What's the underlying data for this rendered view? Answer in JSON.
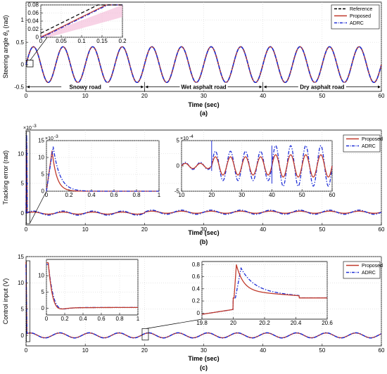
{
  "chart_data": [
    {
      "id": "a",
      "type": "line",
      "caption": "(a)",
      "xlabel": "Time (sec)",
      "ylabel_main": "Steering angle ",
      "ylabel_theta": "θ",
      "ylabel_sub": "s",
      "ylabel_unit": " (rad)",
      "xlim": [
        0,
        60
      ],
      "ylim": [
        -0.6,
        1.4
      ],
      "xticks": [
        "0",
        "10",
        "20",
        "30",
        "40",
        "50",
        "60"
      ],
      "yticks": [
        "-0.5",
        "0",
        "0.5",
        "1"
      ],
      "legend": {
        "position": "top-right",
        "entries": [
          "Reference",
          "Proposed",
          "ADRC"
        ]
      },
      "series": [
        {
          "name": "Reference",
          "color": "#000000",
          "dash": "dashed",
          "signal": "sine",
          "amplitude": 0.4,
          "frequency_hz": 0.2
        },
        {
          "name": "Proposed",
          "color": "#c0392b",
          "dash": "solid",
          "signal": "sine",
          "amplitude": 0.4,
          "frequency_hz": 0.2
        },
        {
          "name": "ADRC",
          "color": "#1f2fd6",
          "dash": "dashdot",
          "signal": "sine",
          "amplitude": 0.4,
          "frequency_hz": 0.2
        }
      ],
      "annotations": [
        {
          "text": "Snowy road",
          "from": 0,
          "to": 20
        },
        {
          "text": "Wet asphalt road",
          "from": 20,
          "to": 40
        },
        {
          "text": "Dry asphalt road",
          "from": 40,
          "to": 60
        }
      ],
      "inset": {
        "xlim": [
          0,
          0.2
        ],
        "ylim": [
          0,
          0.08
        ],
        "xticks": [
          "0",
          "0.05",
          "0.1",
          "0.15",
          "0.2"
        ],
        "yticks": [
          "0",
          "0.02",
          "0.04",
          "0.06",
          "0.08"
        ]
      }
    },
    {
      "id": "b",
      "type": "line",
      "caption": "(b)",
      "xlabel": "Time (sec)",
      "ylabel": "Tracking error (rad)",
      "scale_label": "10",
      "scale_exp": "-3",
      "xlim": [
        0,
        60
      ],
      "ylim": [
        -2,
        14
      ],
      "xticks": [
        "0",
        "10",
        "20",
        "30",
        "40",
        "50",
        "60"
      ],
      "yticks": [
        "0",
        "5",
        "10"
      ],
      "legend": {
        "position": "top-right",
        "entries": [
          "Proposed",
          "ADRC"
        ]
      },
      "series": [
        {
          "name": "Proposed",
          "color": "#c0392b",
          "dash": "solid",
          "peak": 12.0
        },
        {
          "name": "ADRC",
          "color": "#1f2fd6",
          "dash": "dashdot",
          "peak": 13.2
        }
      ],
      "inset_left": {
        "xlim": [
          0,
          1
        ],
        "ylim": [
          0,
          15
        ],
        "scale_label": "10",
        "scale_exp": "-3",
        "xticks": [
          "0",
          "0.2",
          "0.4",
          "0.6",
          "0.8",
          "1"
        ],
        "yticks": [
          "0",
          "5",
          "10",
          "15"
        ]
      },
      "inset_right": {
        "xlim": [
          10,
          60
        ],
        "ylim": [
          -5,
          5
        ],
        "scale_label": "10",
        "scale_exp": "-4",
        "xticks": [
          "10",
          "20",
          "30",
          "40",
          "50",
          "60"
        ],
        "yticks": [
          "-5",
          "0",
          "5"
        ]
      }
    },
    {
      "id": "c",
      "type": "line",
      "caption": "(c)",
      "xlabel": "Time (sec)",
      "ylabel": "Control input (V)",
      "xlim": [
        0,
        60
      ],
      "ylim": [
        -2,
        15
      ],
      "xticks": [
        "0",
        "10",
        "20",
        "30",
        "40",
        "50",
        "60"
      ],
      "yticks": [
        "0",
        "5",
        "10",
        "15"
      ],
      "legend": {
        "position": "top-right",
        "entries": [
          "Proposed",
          "ADRC"
        ]
      },
      "series": [
        {
          "name": "Proposed",
          "color": "#c0392b",
          "dash": "solid",
          "peak": 14.0
        },
        {
          "name": "ADRC",
          "color": "#1f2fd6",
          "dash": "dashdot",
          "peak": 13.5
        }
      ],
      "inset_left": {
        "xlim": [
          0,
          1
        ],
        "ylim": [
          -2,
          15
        ],
        "xticks": [
          "0",
          "0.2",
          "0.4",
          "0.6",
          "0.8",
          "1"
        ],
        "yticks": [
          "0",
          "5",
          "10"
        ]
      },
      "inset_right": {
        "xlim": [
          19.8,
          20.6
        ],
        "ylim": [
          -0.1,
          0.85
        ],
        "xticks": [
          "19.8",
          "20",
          "20.2",
          "20.4",
          "20.6"
        ],
        "yticks": [
          "0",
          "0.2",
          "0.4",
          "0.6",
          "0.8"
        ],
        "series": [
          {
            "name": "Proposed",
            "peak": 0.8,
            "settle": 0.37
          },
          {
            "name": "ADRC",
            "peak": 0.75,
            "settle": 0.37
          }
        ]
      }
    }
  ]
}
